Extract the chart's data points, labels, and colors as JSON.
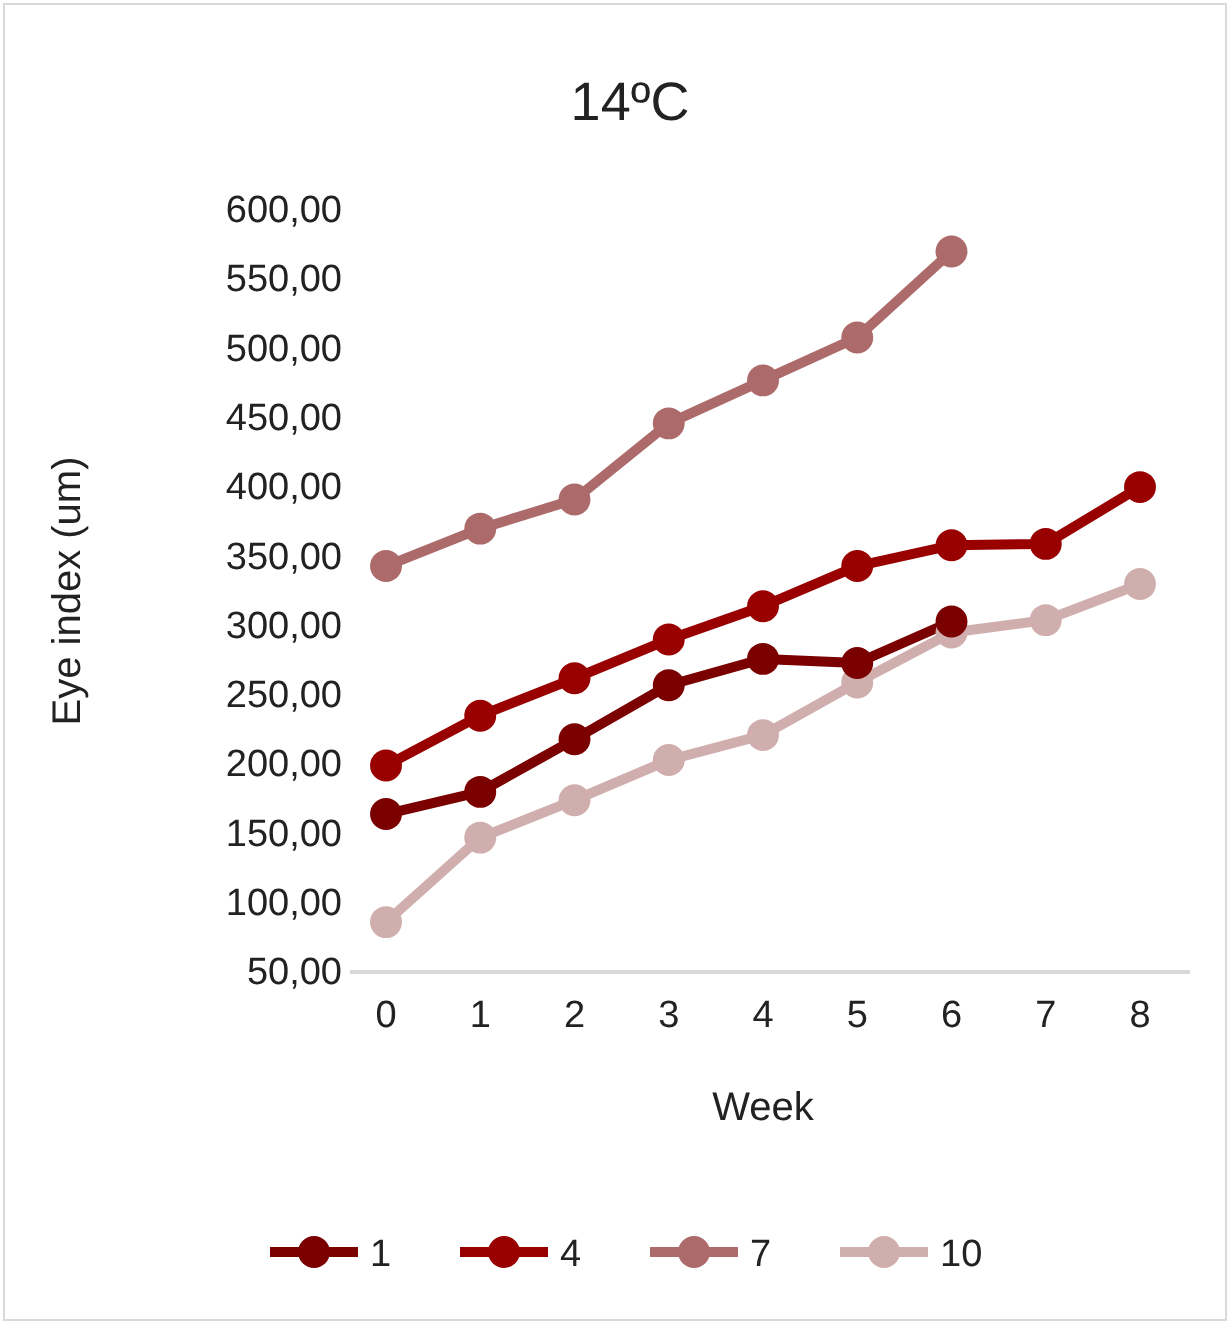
{
  "chart_data": {
    "type": "line",
    "title": "14ºC",
    "xlabel": "Week",
    "ylabel": "Eye index (um)",
    "categories": [
      "0",
      "1",
      "2",
      "3",
      "4",
      "5",
      "6",
      "7",
      "8"
    ],
    "series": [
      {
        "name": "1",
        "color": "#7b0000",
        "values": [
          164,
          180,
          218,
          257,
          276,
          273,
          303,
          null,
          null
        ]
      },
      {
        "name": "4",
        "color": "#990000",
        "values": [
          199,
          235,
          262,
          290,
          314,
          343,
          358,
          359,
          400
        ]
      },
      {
        "name": "7",
        "color": "#ac6a6a",
        "values": [
          343,
          370,
          391,
          446,
          477,
          508,
          570,
          null,
          null
        ]
      },
      {
        "name": "10",
        "color": "#d0aeae",
        "values": [
          86,
          147,
          174,
          203,
          221,
          259,
          295,
          304,
          330
        ]
      }
    ],
    "ylim": [
      50,
      600
    ],
    "yticks": [
      {
        "value": 50,
        "label": "50,00"
      },
      {
        "value": 100,
        "label": "100,00"
      },
      {
        "value": 150,
        "label": "150,00"
      },
      {
        "value": 200,
        "label": "200,00"
      },
      {
        "value": 250,
        "label": "250,00"
      },
      {
        "value": 300,
        "label": "300,00"
      },
      {
        "value": 350,
        "label": "350,00"
      },
      {
        "value": 400,
        "label": "400,00"
      },
      {
        "value": 450,
        "label": "450,00"
      },
      {
        "value": 500,
        "label": "500,00"
      },
      {
        "value": 550,
        "label": "550,00"
      },
      {
        "value": 600,
        "label": "600,00"
      }
    ],
    "grid": false,
    "legend": "bottom",
    "marker": "circle",
    "line_style": "solid"
  }
}
